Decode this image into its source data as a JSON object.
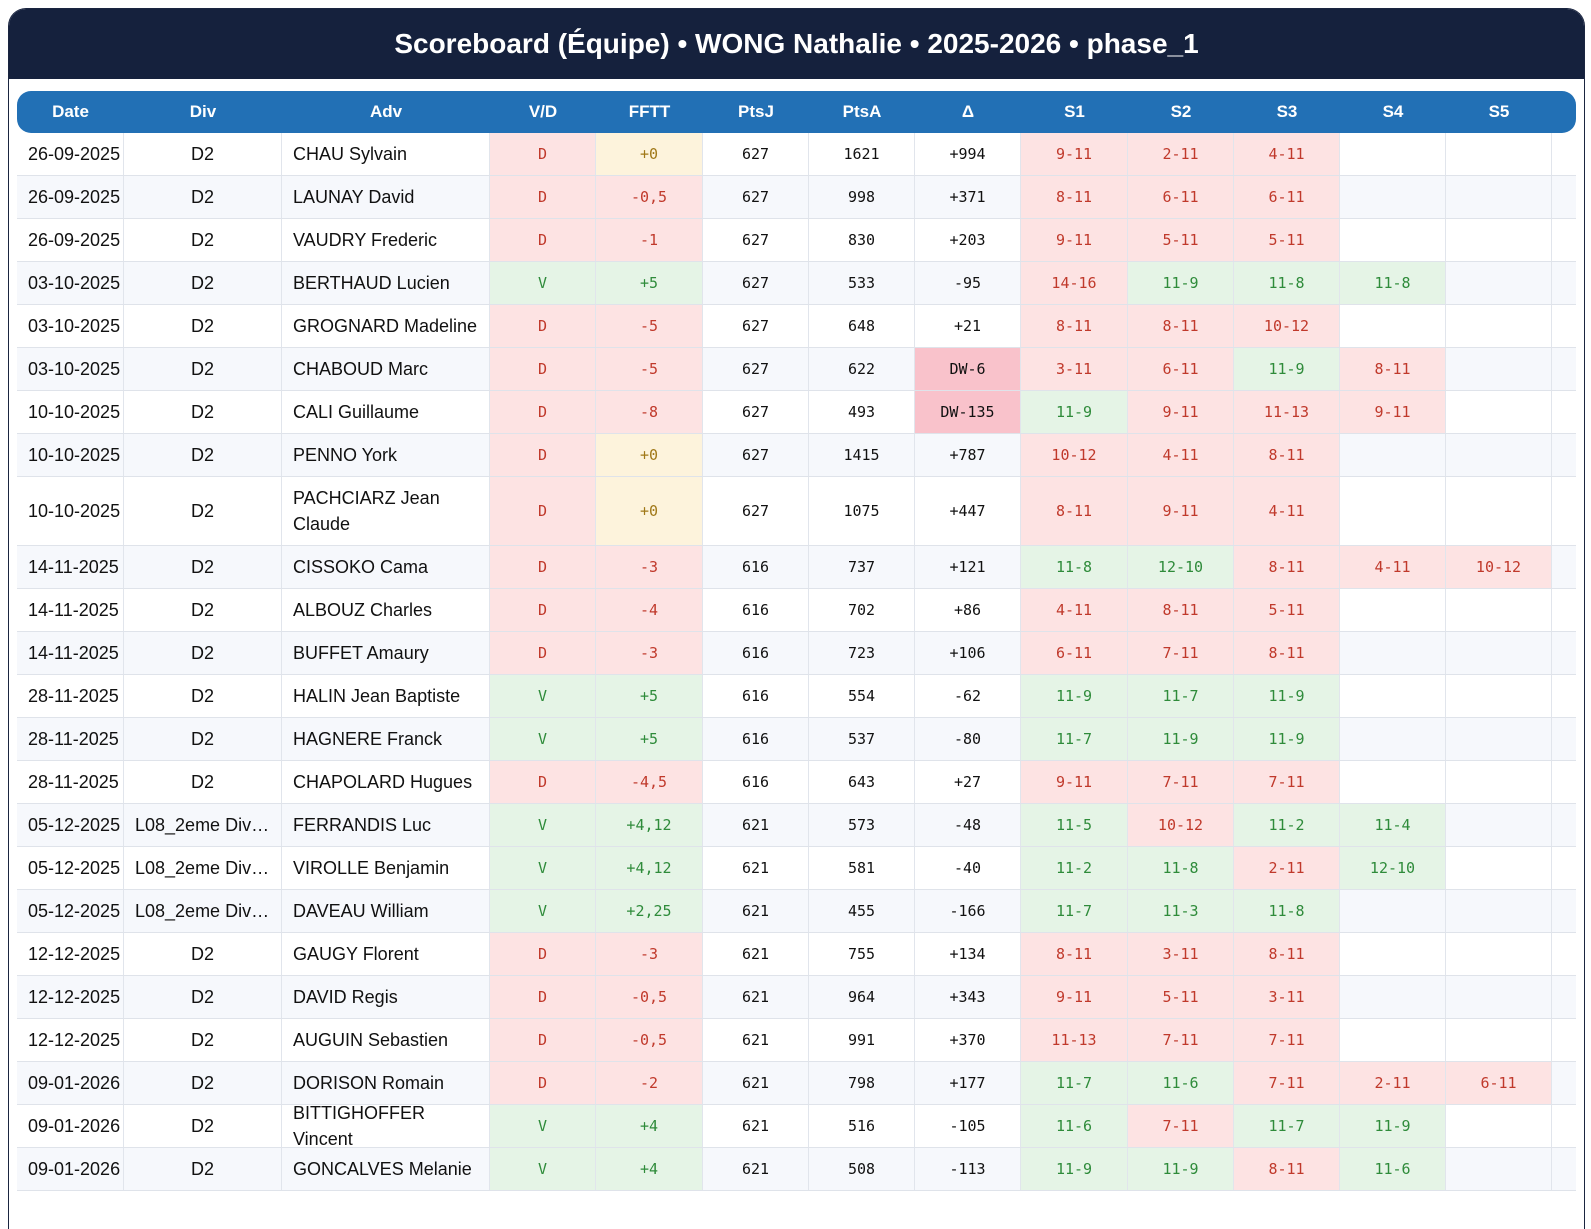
{
  "title": "Scoreboard (Équipe) • WONG Nathalie • 2025-2026 • phase_1",
  "columns": [
    "Date",
    "Div",
    "Adv",
    "V/D",
    "FFTT",
    "PtsJ",
    "PtsA",
    "Δ",
    "S1",
    "S2",
    "S3",
    "S4",
    "S5"
  ],
  "rows": [
    {
      "date": "26-09-2025",
      "div": "D2",
      "adv": "CHAU Sylvain",
      "vd": "D",
      "fftt": "+0",
      "ptsj": "627",
      "ptsa": "1621",
      "delta": "+994",
      "s1": "9-11",
      "s2": "2-11",
      "s3": "4-11",
      "s4": "",
      "s5": ""
    },
    {
      "date": "26-09-2025",
      "div": "D2",
      "adv": "LAUNAY David",
      "vd": "D",
      "fftt": "-0,5",
      "ptsj": "627",
      "ptsa": "998",
      "delta": "+371",
      "s1": "8-11",
      "s2": "6-11",
      "s3": "6-11",
      "s4": "",
      "s5": ""
    },
    {
      "date": "26-09-2025",
      "div": "D2",
      "adv": "VAUDRY Frederic",
      "vd": "D",
      "fftt": "-1",
      "ptsj": "627",
      "ptsa": "830",
      "delta": "+203",
      "s1": "9-11",
      "s2": "5-11",
      "s3": "5-11",
      "s4": "",
      "s5": ""
    },
    {
      "date": "03-10-2025",
      "div": "D2",
      "adv": "BERTHAUD Lucien",
      "vd": "V",
      "fftt": "+5",
      "ptsj": "627",
      "ptsa": "533",
      "delta": "-95",
      "s1": "14-16",
      "s2": "11-9",
      "s3": "11-8",
      "s4": "11-8",
      "s5": ""
    },
    {
      "date": "03-10-2025",
      "div": "D2",
      "adv": "GROGNARD Madeline",
      "vd": "D",
      "fftt": "-5",
      "ptsj": "627",
      "ptsa": "648",
      "delta": "+21",
      "s1": "8-11",
      "s2": "8-11",
      "s3": "10-12",
      "s4": "",
      "s5": ""
    },
    {
      "date": "03-10-2025",
      "div": "D2",
      "adv": "CHABOUD Marc",
      "vd": "D",
      "fftt": "-5",
      "ptsj": "627",
      "ptsa": "622",
      "delta": "DW-6",
      "s1": "3-11",
      "s2": "6-11",
      "s3": "11-9",
      "s4": "8-11",
      "s5": ""
    },
    {
      "date": "10-10-2025",
      "div": "D2",
      "adv": "CALI Guillaume",
      "vd": "D",
      "fftt": "-8",
      "ptsj": "627",
      "ptsa": "493",
      "delta": "DW-135",
      "s1": "11-9",
      "s2": "9-11",
      "s3": "11-13",
      "s4": "9-11",
      "s5": ""
    },
    {
      "date": "10-10-2025",
      "div": "D2",
      "adv": "PENNO York",
      "vd": "D",
      "fftt": "+0",
      "ptsj": "627",
      "ptsa": "1415",
      "delta": "+787",
      "s1": "10-12",
      "s2": "4-11",
      "s3": "8-11",
      "s4": "",
      "s5": ""
    },
    {
      "date": "10-10-2025",
      "div": "D2",
      "adv": "PACHCIARZ Jean Claude",
      "vd": "D",
      "fftt": "+0",
      "ptsj": "627",
      "ptsa": "1075",
      "delta": "+447",
      "s1": "8-11",
      "s2": "9-11",
      "s3": "4-11",
      "s4": "",
      "s5": ""
    },
    {
      "date": "14-11-2025",
      "div": "D2",
      "adv": "CISSOKO Cama",
      "vd": "D",
      "fftt": "-3",
      "ptsj": "616",
      "ptsa": "737",
      "delta": "+121",
      "s1": "11-8",
      "s2": "12-10",
      "s3": "8-11",
      "s4": "4-11",
      "s5": "10-12"
    },
    {
      "date": "14-11-2025",
      "div": "D2",
      "adv": "ALBOUZ Charles",
      "vd": "D",
      "fftt": "-4",
      "ptsj": "616",
      "ptsa": "702",
      "delta": "+86",
      "s1": "4-11",
      "s2": "8-11",
      "s3": "5-11",
      "s4": "",
      "s5": ""
    },
    {
      "date": "14-11-2025",
      "div": "D2",
      "adv": "BUFFET Amaury",
      "vd": "D",
      "fftt": "-3",
      "ptsj": "616",
      "ptsa": "723",
      "delta": "+106",
      "s1": "6-11",
      "s2": "7-11",
      "s3": "8-11",
      "s4": "",
      "s5": ""
    },
    {
      "date": "28-11-2025",
      "div": "D2",
      "adv": "HALIN Jean Baptiste",
      "vd": "V",
      "fftt": "+5",
      "ptsj": "616",
      "ptsa": "554",
      "delta": "-62",
      "s1": "11-9",
      "s2": "11-7",
      "s3": "11-9",
      "s4": "",
      "s5": ""
    },
    {
      "date": "28-11-2025",
      "div": "D2",
      "adv": "HAGNERE Franck",
      "vd": "V",
      "fftt": "+5",
      "ptsj": "616",
      "ptsa": "537",
      "delta": "-80",
      "s1": "11-7",
      "s2": "11-9",
      "s3": "11-9",
      "s4": "",
      "s5": ""
    },
    {
      "date": "28-11-2025",
      "div": "D2",
      "adv": "CHAPOLARD Hugues",
      "vd": "D",
      "fftt": "-4,5",
      "ptsj": "616",
      "ptsa": "643",
      "delta": "+27",
      "s1": "9-11",
      "s2": "7-11",
      "s3": "7-11",
      "s4": "",
      "s5": ""
    },
    {
      "date": "05-12-2025",
      "div": "L08_2eme Div…",
      "adv": "FERRANDIS Luc",
      "vd": "V",
      "fftt": "+4,12",
      "ptsj": "621",
      "ptsa": "573",
      "delta": "-48",
      "s1": "11-5",
      "s2": "10-12",
      "s3": "11-2",
      "s4": "11-4",
      "s5": ""
    },
    {
      "date": "05-12-2025",
      "div": "L08_2eme Div…",
      "adv": "VIROLLE Benjamin",
      "vd": "V",
      "fftt": "+4,12",
      "ptsj": "621",
      "ptsa": "581",
      "delta": "-40",
      "s1": "11-2",
      "s2": "11-8",
      "s3": "2-11",
      "s4": "12-10",
      "s5": ""
    },
    {
      "date": "05-12-2025",
      "div": "L08_2eme Div…",
      "adv": "DAVEAU William",
      "vd": "V",
      "fftt": "+2,25",
      "ptsj": "621",
      "ptsa": "455",
      "delta": "-166",
      "s1": "11-7",
      "s2": "11-3",
      "s3": "11-8",
      "s4": "",
      "s5": ""
    },
    {
      "date": "12-12-2025",
      "div": "D2",
      "adv": "GAUGY Florent",
      "vd": "D",
      "fftt": "-3",
      "ptsj": "621",
      "ptsa": "755",
      "delta": "+134",
      "s1": "8-11",
      "s2": "3-11",
      "s3": "8-11",
      "s4": "",
      "s5": ""
    },
    {
      "date": "12-12-2025",
      "div": "D2",
      "adv": "DAVID Regis",
      "vd": "D",
      "fftt": "-0,5",
      "ptsj": "621",
      "ptsa": "964",
      "delta": "+343",
      "s1": "9-11",
      "s2": "5-11",
      "s3": "3-11",
      "s4": "",
      "s5": ""
    },
    {
      "date": "12-12-2025",
      "div": "D2",
      "adv": "AUGUIN Sebastien",
      "vd": "D",
      "fftt": "-0,5",
      "ptsj": "621",
      "ptsa": "991",
      "delta": "+370",
      "s1": "11-13",
      "s2": "7-11",
      "s3": "7-11",
      "s4": "",
      "s5": ""
    },
    {
      "date": "09-01-2026",
      "div": "D2",
      "adv": "DORISON Romain",
      "vd": "D",
      "fftt": "-2",
      "ptsj": "621",
      "ptsa": "798",
      "delta": "+177",
      "s1": "11-7",
      "s2": "11-6",
      "s3": "7-11",
      "s4": "2-11",
      "s5": "6-11"
    },
    {
      "date": "09-01-2026",
      "div": "D2",
      "adv": "BITTIGHOFFER Vincent",
      "vd": "V",
      "fftt": "+4",
      "ptsj": "621",
      "ptsa": "516",
      "delta": "-105",
      "s1": "11-6",
      "s2": "7-11",
      "s3": "11-7",
      "s4": "11-9",
      "s5": ""
    },
    {
      "date": "09-01-2026",
      "div": "D2",
      "adv": "GONCALVES Melanie",
      "vd": "V",
      "fftt": "+4",
      "ptsj": "621",
      "ptsa": "508",
      "delta": "-113",
      "s1": "11-9",
      "s2": "11-9",
      "s3": "8-11",
      "s4": "11-6",
      "s5": ""
    }
  ],
  "colors": {
    "header_bg": "#15213d",
    "table_header_bg": "#2270b5",
    "win": "#e5f4e6",
    "loss": "#fde3e3",
    "zero": "#fdf3dc",
    "dw": "#f9c2cb"
  }
}
